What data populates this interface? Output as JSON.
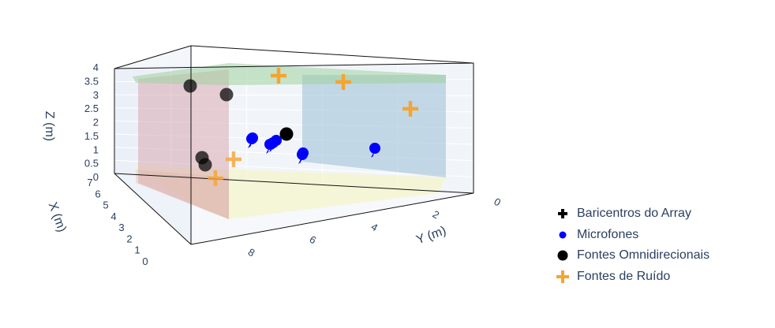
{
  "chart_data": {
    "type": "scatter3d",
    "axes": {
      "x": {
        "title": "X (m)",
        "range": [
          0,
          7
        ],
        "ticks": [
          0,
          1,
          2,
          3,
          4,
          5,
          6,
          7
        ]
      },
      "y": {
        "title": "Y (m)",
        "range": [
          0,
          9.5
        ],
        "ticks": [
          0,
          2,
          4,
          6,
          8
        ]
      },
      "z": {
        "title": "Z (m)",
        "range": [
          0,
          4
        ],
        "ticks": [
          0,
          0.5,
          1,
          1.5,
          2,
          2.5,
          3,
          3.5,
          4
        ]
      }
    },
    "grid": true,
    "legend_position": "right",
    "series": [
      {
        "name": "Baricentros do Array",
        "color": "#000000",
        "symbol": "cross",
        "points": []
      },
      {
        "name": "Microfones",
        "color": "#0000ff",
        "symbol": "circle",
        "points": [
          [
            2.6,
            6.5,
            1.3
          ],
          [
            2.6,
            6.7,
            1.35
          ],
          [
            2.8,
            6.6,
            1.2
          ],
          [
            2.7,
            6.4,
            1.3
          ],
          [
            3.0,
            6.8,
            1.25
          ],
          [
            2.5,
            6.1,
            1.1
          ],
          [
            3.2,
            3.0,
            1.1
          ],
          [
            3.3,
            5.0,
            1.4
          ]
        ]
      },
      {
        "name": "Fontes Omnidirecionais",
        "color": "#000000",
        "symbol": "circle",
        "points": [
          [
            2.5,
            6.0,
            1.55
          ],
          [
            0.4,
            8.6,
            3.0
          ],
          [
            0.7,
            9.3,
            3.5
          ],
          [
            0.8,
            9.4,
            1.1
          ],
          [
            1.2,
            9.3,
            0.9
          ]
        ]
      },
      {
        "name": "Fontes de Ruído",
        "color": "#f5a430",
        "symbol": "cross",
        "points": [
          [
            6.0,
            4.0,
            3.8
          ],
          [
            6.0,
            2.0,
            3.6
          ],
          [
            5.0,
            0.4,
            2.3
          ],
          [
            1.0,
            9.0,
            0.5
          ],
          [
            0.6,
            9.4,
            0.0
          ]
        ]
      }
    ],
    "surfaces": [
      {
        "name": "floor",
        "color": "#f5f5c8"
      },
      {
        "name": "ceiling",
        "color": "#9ed19e"
      },
      {
        "name": "wall-y0",
        "color": "#a9c6da"
      },
      {
        "name": "wall-y-max",
        "color": "#d9a9b0"
      },
      {
        "name": "wall-x0",
        "color": "#e8c8a8"
      }
    ]
  }
}
